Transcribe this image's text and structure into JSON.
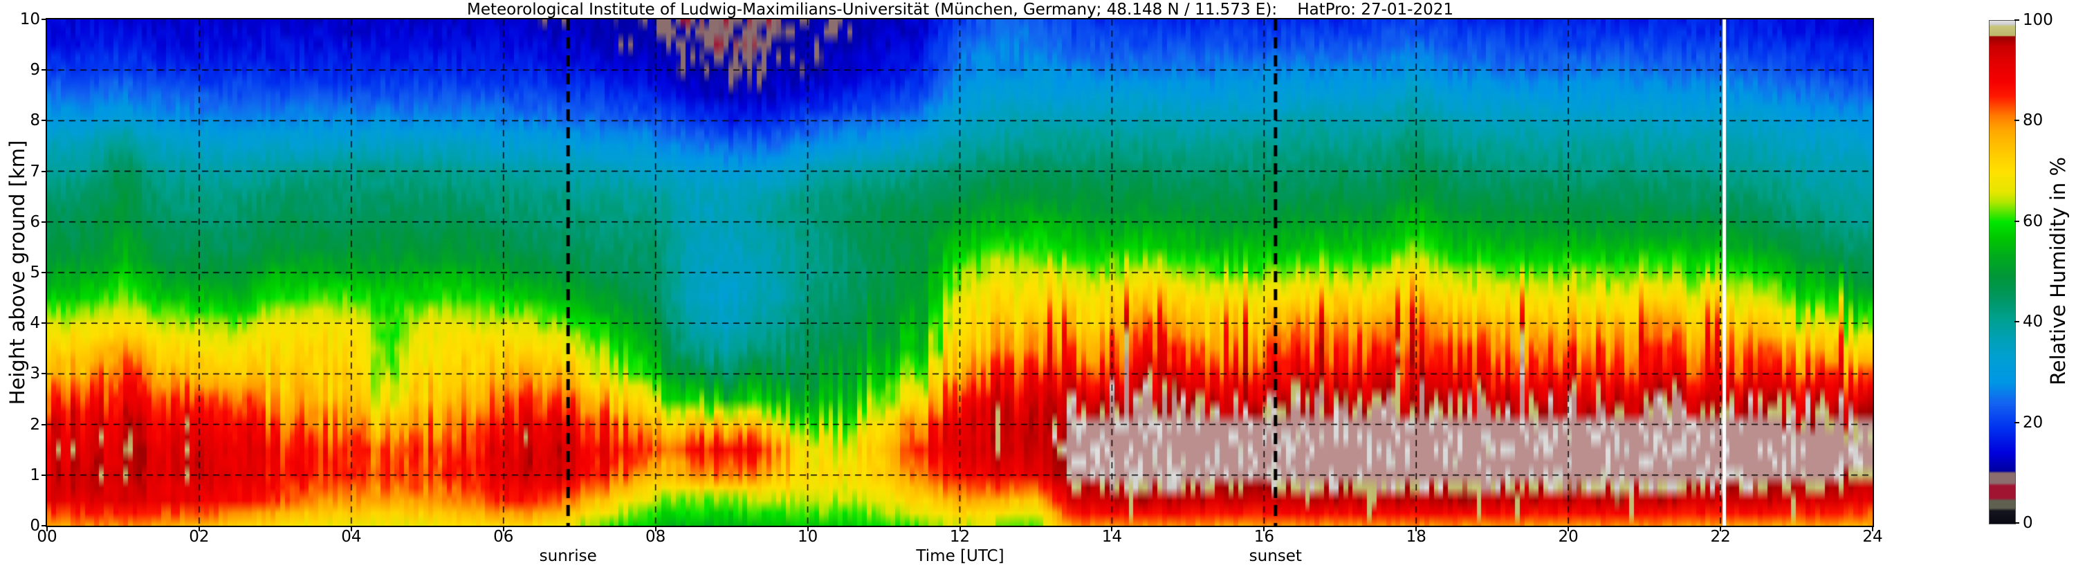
{
  "title": "Meteorological Institute of Ludwig-Maximilians-Universität (München, Germany; 48.148 N / 11.573 E):    HatPro: 27-01-2021",
  "axes": {
    "xlabel": "Time [UTC]",
    "ylabel": "Height above ground [km]",
    "x_range_hours": [
      0,
      24
    ],
    "y_range_km": [
      0,
      10
    ],
    "x_tick_hours": [
      0,
      2,
      4,
      6,
      8,
      10,
      12,
      14,
      16,
      18,
      20,
      22,
      24
    ],
    "x_tick_labels": [
      "00",
      "02",
      "04",
      "06",
      "08",
      "10",
      "12",
      "14",
      "16",
      "18",
      "20",
      "22",
      "24"
    ],
    "y_tick_km": [
      0,
      1,
      2,
      3,
      4,
      5,
      6,
      7,
      8,
      9,
      10
    ],
    "y_tick_labels": [
      "0",
      "1",
      "2",
      "3",
      "4",
      "5",
      "6",
      "7",
      "8",
      "9",
      "10"
    ],
    "grid_dashed": true,
    "x_gridline_hours": [
      2,
      4,
      6,
      8,
      10,
      12,
      14,
      16,
      18,
      20,
      22
    ],
    "y_gridline_km": [
      1,
      2,
      3,
      4,
      5,
      6,
      7,
      8,
      9
    ]
  },
  "annotations": {
    "sunrise_label": "sunrise",
    "sunrise_hour": 6.85,
    "sunset_label": "sunset",
    "sunset_hour": 16.15,
    "missing_data_hour": 22.05,
    "missing_data_color": "#ffffff",
    "event_line_color": "#000000"
  },
  "colorbar": {
    "label": "Relative Humidity in %",
    "tick_values": [
      0,
      20,
      40,
      60,
      80,
      100
    ],
    "tick_labels": [
      "0",
      "20",
      "40",
      "60",
      "80",
      "100"
    ],
    "range": [
      0,
      100
    ]
  },
  "chart_data": {
    "type": "heatmap",
    "title": "Meteorological Institute of Ludwig-Maximilians-Universität (München, Germany; 48.148 N / 11.573 E):    HatPro: 27-01-2021",
    "xlabel": "Time [UTC]",
    "ylabel": "Height above ground [km]",
    "zlabel": "Relative Humidity in %",
    "x_hours": [
      0,
      0.5,
      1,
      1.5,
      2,
      2.5,
      3,
      3.5,
      4,
      4.5,
      5,
      5.5,
      6,
      6.5,
      7,
      7.5,
      8,
      8.5,
      9,
      9.5,
      10,
      10.5,
      11,
      11.5,
      12,
      12.5,
      13,
      13.5,
      14,
      14.5,
      15,
      15.5,
      16,
      16.5,
      17,
      17.5,
      18,
      18.5,
      19,
      19.5,
      20,
      20.5,
      21,
      21.5,
      22,
      22.5,
      23,
      23.5,
      24
    ],
    "heights_km": [
      0,
      0.5,
      1,
      1.5,
      2,
      2.5,
      3,
      3.5,
      4,
      4.5,
      5,
      5.5,
      6,
      6.5,
      7,
      7.5,
      8,
      8.5,
      9,
      9.5,
      10
    ],
    "rh_percent_by_time": [
      [
        78,
        90,
        93,
        92,
        90,
        84,
        76,
        72,
        66,
        58,
        52,
        48,
        46,
        44,
        40,
        36,
        30,
        25,
        20,
        16,
        14
      ],
      [
        80,
        92,
        94,
        93,
        91,
        86,
        78,
        73,
        66,
        58,
        52,
        48,
        46,
        44,
        40,
        36,
        30,
        25,
        20,
        16,
        14
      ],
      [
        80,
        92,
        95,
        94,
        92,
        88,
        84,
        78,
        70,
        63,
        57,
        53,
        50,
        48,
        46,
        42,
        32,
        26,
        21,
        17,
        14
      ],
      [
        78,
        90,
        93,
        92,
        90,
        85,
        77,
        72,
        65,
        57,
        51,
        47,
        45,
        43,
        40,
        35,
        29,
        24,
        19,
        15,
        13
      ],
      [
        76,
        90,
        94,
        93,
        91,
        84,
        75,
        70,
        64,
        56,
        50,
        46,
        44,
        42,
        39,
        34,
        28,
        23,
        18,
        15,
        13
      ],
      [
        74,
        88,
        93,
        94,
        92,
        86,
        76,
        70,
        63,
        55,
        50,
        46,
        44,
        42,
        38,
        33,
        27,
        22,
        18,
        15,
        13
      ],
      [
        70,
        84,
        88,
        87,
        82,
        76,
        73,
        71,
        68,
        60,
        54,
        49,
        46,
        44,
        40,
        34,
        28,
        22,
        18,
        15,
        13
      ],
      [
        68,
        80,
        85,
        85,
        80,
        75,
        72,
        71,
        69,
        61,
        54,
        49,
        46,
        44,
        40,
        34,
        28,
        22,
        18,
        15,
        13
      ],
      [
        68,
        79,
        84,
        84,
        79,
        74,
        72,
        71,
        69,
        61,
        54,
        49,
        46,
        44,
        41,
        35,
        28,
        22,
        18,
        15,
        13
      ],
      [
        67,
        78,
        83,
        82,
        74,
        66,
        62,
        60,
        60,
        58,
        53,
        49,
        46,
        44,
        41,
        35,
        28,
        22,
        18,
        15,
        13
      ],
      [
        68,
        79,
        84,
        84,
        80,
        75,
        72,
        70,
        67,
        60,
        54,
        49,
        46,
        44,
        41,
        35,
        28,
        22,
        18,
        15,
        13
      ],
      [
        70,
        82,
        87,
        87,
        84,
        78,
        74,
        71,
        67,
        60,
        54,
        49,
        46,
        44,
        40,
        34,
        28,
        22,
        18,
        15,
        13
      ],
      [
        72,
        86,
        91,
        91,
        88,
        82,
        76,
        72,
        66,
        58,
        52,
        48,
        45,
        43,
        39,
        33,
        27,
        22,
        18,
        15,
        13
      ],
      [
        70,
        85,
        92,
        92,
        89,
        83,
        76,
        71,
        64,
        56,
        50,
        46,
        44,
        42,
        38,
        32,
        26,
        21,
        17,
        14,
        12
      ],
      [
        65,
        80,
        90,
        91,
        87,
        80,
        72,
        66,
        60,
        53,
        48,
        45,
        43,
        41,
        37,
        31,
        25,
        20,
        16,
        13,
        11
      ],
      [
        60,
        72,
        84,
        88,
        83,
        74,
        66,
        60,
        55,
        50,
        46,
        44,
        42,
        40,
        36,
        30,
        24,
        19,
        15,
        12,
        11
      ],
      [
        56,
        64,
        74,
        80,
        72,
        62,
        55,
        51,
        48,
        46,
        45,
        44,
        42,
        40,
        35,
        29,
        23,
        17,
        13,
        11,
        10
      ],
      [
        55,
        62,
        78,
        86,
        74,
        57,
        48,
        41,
        37,
        35,
        35,
        36,
        36,
        36,
        32,
        26,
        20,
        14,
        11,
        10,
        9
      ],
      [
        55,
        63,
        82,
        89,
        76,
        56,
        46,
        39,
        35,
        34,
        34,
        35,
        36,
        36,
        31,
        24,
        17,
        12,
        10,
        9,
        9
      ],
      [
        56,
        64,
        76,
        83,
        70,
        56,
        48,
        43,
        39,
        37,
        37,
        38,
        39,
        38,
        32,
        25,
        18,
        13,
        11,
        10,
        9
      ],
      [
        58,
        66,
        72,
        71,
        63,
        56,
        51,
        47,
        44,
        42,
        41,
        41,
        42,
        42,
        36,
        28,
        21,
        15,
        12,
        11,
        10
      ],
      [
        58,
        65,
        70,
        68,
        62,
        56,
        52,
        49,
        47,
        45,
        44,
        44,
        45,
        44,
        38,
        30,
        23,
        17,
        13,
        12,
        11
      ],
      [
        60,
        67,
        73,
        74,
        70,
        62,
        56,
        52,
        50,
        48,
        47,
        47,
        47,
        45,
        40,
        32,
        25,
        19,
        15,
        13,
        12
      ],
      [
        62,
        72,
        82,
        86,
        82,
        72,
        64,
        58,
        55,
        52,
        50,
        49,
        48,
        46,
        41,
        34,
        27,
        21,
        17,
        15,
        13
      ],
      [
        66,
        78,
        88,
        92,
        92,
        88,
        80,
        74,
        71,
        68,
        63,
        57,
        52,
        48,
        44,
        38,
        34,
        30,
        27,
        24,
        20
      ],
      [
        64,
        76,
        90,
        94,
        94,
        91,
        85,
        77,
        73,
        70,
        66,
        60,
        54,
        50,
        45,
        40,
        36,
        32,
        28,
        26,
        24
      ],
      [
        62,
        74,
        90,
        94,
        94,
        92,
        88,
        80,
        75,
        71,
        66,
        60,
        55,
        50,
        46,
        41,
        37,
        32,
        28,
        26,
        24
      ],
      [
        80,
        93,
        100,
        101,
        100,
        95,
        87,
        79,
        74,
        70,
        64,
        58,
        53,
        49,
        45,
        41,
        37,
        32,
        27,
        23,
        19
      ],
      [
        80,
        95,
        101,
        102,
        101,
        96,
        88,
        81,
        76,
        71,
        64,
        57,
        52,
        48,
        45,
        41,
        37,
        32,
        26,
        22,
        18
      ],
      [
        80,
        95,
        102,
        102,
        101,
        96,
        90,
        85,
        79,
        73,
        66,
        58,
        52,
        48,
        45,
        41,
        37,
        32,
        26,
        22,
        18
      ],
      [
        80,
        95,
        102,
        102,
        101,
        96,
        88,
        81,
        75,
        70,
        63,
        56,
        51,
        47,
        44,
        40,
        36,
        31,
        26,
        22,
        18
      ],
      [
        79,
        94,
        101,
        102,
        100,
        95,
        87,
        80,
        74,
        69,
        62,
        55,
        50,
        47,
        44,
        40,
        36,
        31,
        26,
        22,
        18
      ],
      [
        79,
        94,
        101,
        102,
        100,
        95,
        87,
        81,
        75,
        69,
        62,
        55,
        50,
        47,
        44,
        41,
        37,
        32,
        27,
        22,
        18
      ],
      [
        80,
        95,
        102,
        102,
        101,
        96,
        88,
        83,
        78,
        71,
        63,
        56,
        51,
        47,
        44,
        41,
        37,
        32,
        27,
        22,
        18
      ],
      [
        80,
        95,
        102,
        103,
        101,
        96,
        89,
        84,
        79,
        72,
        64,
        57,
        52,
        48,
        45,
        41,
        37,
        32,
        27,
        22,
        18
      ],
      [
        80,
        95,
        101,
        102,
        100,
        95,
        88,
        82,
        76,
        70,
        63,
        56,
        51,
        47,
        44,
        41,
        37,
        32,
        27,
        23,
        19
      ],
      [
        80,
        95,
        102,
        103,
        101,
        96,
        90,
        86,
        82,
        76,
        70,
        62,
        56,
        52,
        48,
        44,
        40,
        35,
        30,
        25,
        20
      ],
      [
        80,
        95,
        101,
        102,
        100,
        95,
        88,
        82,
        76,
        70,
        63,
        56,
        51,
        47,
        44,
        40,
        36,
        31,
        26,
        22,
        18
      ],
      [
        80,
        95,
        102,
        102,
        101,
        95,
        88,
        83,
        77,
        70,
        63,
        56,
        51,
        47,
        43,
        40,
        36,
        31,
        26,
        22,
        18
      ],
      [
        79,
        94,
        101,
        102,
        100,
        95,
        87,
        81,
        75,
        69,
        62,
        55,
        50,
        46,
        43,
        39,
        35,
        30,
        25,
        21,
        17
      ],
      [
        80,
        95,
        102,
        102,
        100,
        95,
        88,
        82,
        76,
        70,
        63,
        56,
        50,
        46,
        43,
        39,
        35,
        30,
        25,
        21,
        17
      ],
      [
        80,
        95,
        101,
        102,
        100,
        95,
        87,
        81,
        75,
        69,
        62,
        55,
        50,
        46,
        42,
        39,
        35,
        30,
        25,
        21,
        17
      ],
      [
        80,
        95,
        102,
        103,
        101,
        96,
        88,
        83,
        78,
        71,
        63,
        56,
        50,
        46,
        42,
        39,
        35,
        30,
        25,
        21,
        17
      ],
      [
        79,
        94,
        101,
        102,
        100,
        95,
        87,
        81,
        75,
        69,
        62,
        55,
        49,
        45,
        42,
        38,
        34,
        29,
        24,
        20,
        17
      ],
      [
        79,
        94,
        101,
        102,
        100,
        94,
        86,
        80,
        74,
        68,
        61,
        54,
        49,
        45,
        41,
        38,
        34,
        29,
        24,
        20,
        17
      ],
      [
        79,
        94,
        101,
        102,
        100,
        94,
        86,
        80,
        73,
        66,
        59,
        52,
        47,
        44,
        40,
        37,
        33,
        28,
        23,
        19,
        16
      ],
      [
        78,
        93,
        100,
        101,
        99,
        92,
        83,
        75,
        67,
        60,
        54,
        48,
        44,
        41,
        38,
        35,
        31,
        26,
        21,
        18,
        15
      ],
      [
        78,
        92,
        100,
        101,
        98,
        91,
        81,
        72,
        63,
        56,
        50,
        45,
        42,
        39,
        37,
        34,
        30,
        25,
        20,
        17,
        14
      ],
      [
        76,
        90,
        98,
        100,
        97,
        89,
        79,
        69,
        60,
        52,
        46,
        42,
        40,
        38,
        36,
        33,
        29,
        24,
        19,
        16,
        13
      ]
    ],
    "colormap_stops": [
      [
        0,
        "#0a0a14"
      ],
      [
        2.5,
        "#14141e"
      ],
      [
        3,
        "#5f6050"
      ],
      [
        4.5,
        "#5f6050"
      ],
      [
        5,
        "#a01432"
      ],
      [
        7.5,
        "#a01432"
      ],
      [
        8,
        "#8c6e6e"
      ],
      [
        10,
        "#8c6e6e"
      ],
      [
        10.4,
        "#0000a0"
      ],
      [
        14,
        "#0000dc"
      ],
      [
        19,
        "#0032f0"
      ],
      [
        24,
        "#1464f0"
      ],
      [
        28,
        "#0096e6"
      ],
      [
        33,
        "#00a0d2"
      ],
      [
        37,
        "#00a0b4"
      ],
      [
        41,
        "#00a08c"
      ],
      [
        45,
        "#009660"
      ],
      [
        49,
        "#00963a"
      ],
      [
        53,
        "#00aa1e"
      ],
      [
        57,
        "#00c800"
      ],
      [
        60,
        "#00e600"
      ],
      [
        62,
        "#5ae600"
      ],
      [
        64,
        "#b4e600"
      ],
      [
        66,
        "#e6e600"
      ],
      [
        70,
        "#ffe100"
      ],
      [
        74,
        "#ffc800"
      ],
      [
        78,
        "#ffaa00"
      ],
      [
        81,
        "#ff7d00"
      ],
      [
        83,
        "#ff4b00"
      ],
      [
        85,
        "#ff1900"
      ],
      [
        88,
        "#f50000"
      ],
      [
        92,
        "#e10000"
      ],
      [
        95,
        "#c80000"
      ],
      [
        96.5,
        "#a00000"
      ],
      [
        96.9,
        "#a00000"
      ],
      [
        97.1,
        "#bdb76b"
      ],
      [
        99,
        "#c8c87d"
      ],
      [
        99.3,
        "#cdcdcd"
      ],
      [
        100,
        "#e0e0e0"
      ]
    ],
    "over_saturation_color": "#bc8f8f"
  }
}
